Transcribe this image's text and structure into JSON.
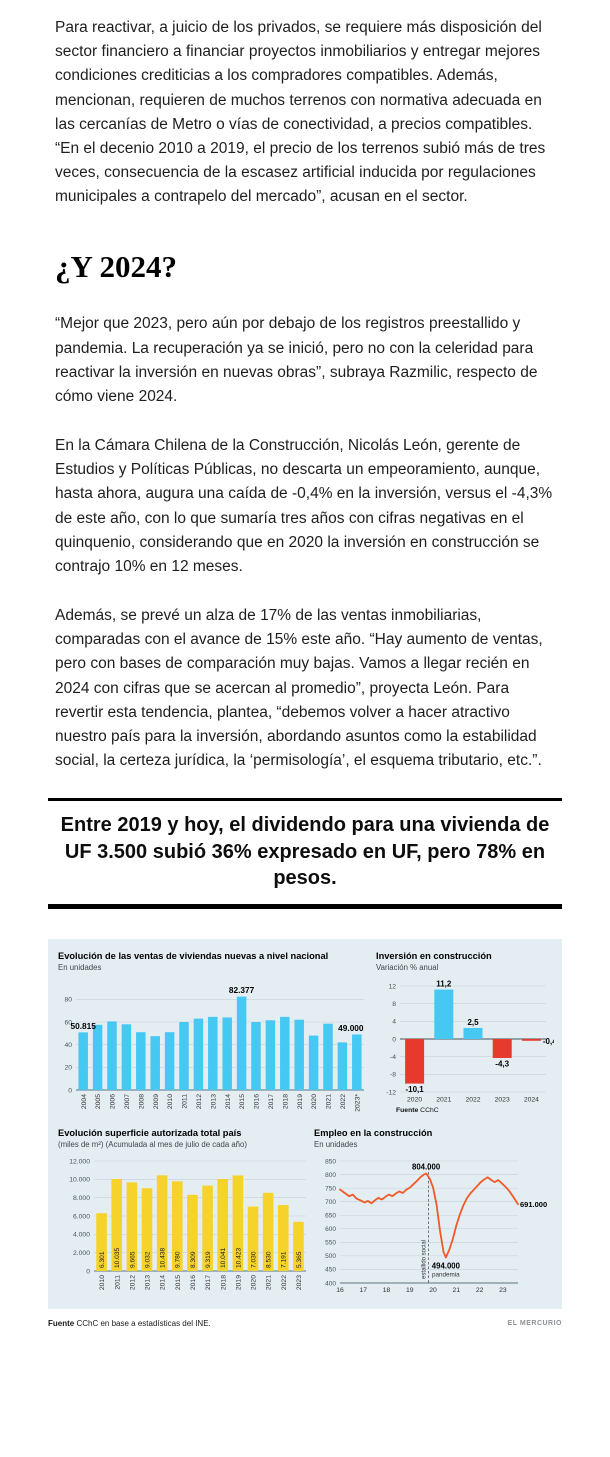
{
  "article": {
    "paragraph_1": "Para reactivar, a juicio de los privados, se requiere más disposición del sector financiero a financiar proyectos inmobiliarios y entregar mejores condiciones crediticias a los compradores compatibles. Además, mencionan, requieren de muchos terrenos con normativa adecuada en las cercanías de Metro o vías de conectividad, a precios compatibles. “En el decenio 2010 a 2019, el precio de los terrenos subió más de tres veces, consecuencia de la escasez artificial inducida por regulaciones municipales a contrapelo del mercado”, acusan en el sector.",
    "section_heading": "¿Y 2024?",
    "paragraph_2": "“Mejor que 2023, pero aún por debajo de los registros preestallido y pandemia. La recuperación ya se inició, pero no con la celeridad para reactivar la inversión en nuevas obras”, subraya Razmilic, respecto de cómo viene 2024.",
    "paragraph_3": "En la Cámara Chilena de la Construcción, Nicolás León, gerente de Estudios y Políticas Públicas, no descarta un empeoramiento, aunque, hasta ahora, augura una caída de -0,4% en la inversión, versus el -4,3% de este año, con lo que sumaría tres años con cifras negativas en el quinquenio, considerando que en 2020 la inversión en construcción se contrajo 10% en 12 meses.",
    "paragraph_4": "Además, se prevé un alza de 17% de las ventas inmobiliarias, comparadas con el avance de 15% este año. “Hay aumento de ventas, pero con bases de comparación muy bajas. Vamos a llegar recién en 2024 con cifras que se acercan al promedio”, proyecta León. Para revertir esta tendencia, plantea, “debemos volver a hacer atractivo nuestro país para la inversión, abordando asuntos como la estabilidad social, la certeza jurídica, la ‘permisología’, el esquema tributario, etc.”.",
    "pull_quote": "Entre 2019 y hoy, el dividendo para una vivienda de UF 3.500 subió 36% expresado en UF, pero 78% en pesos."
  },
  "footer": {
    "source_label": "Fuente",
    "source_text": "CChC en base a estadísticas del INE.",
    "credit": "EL MERCURIO"
  },
  "colors": {
    "accent_cyan": "#45c8f1",
    "accent_red": "#e8392d",
    "accent_yellow": "#f6d32b",
    "accent_orange": "#f1592a",
    "panel_background": "#e4edf2"
  },
  "chart_data": [
    {
      "id": "ventas-viviendas",
      "type": "bar",
      "title": "Evolución de las ventas de viviendas nuevas a nivel nacional",
      "subtitle": "En unidades",
      "unit": "miles de unidades",
      "categories": [
        "2004",
        "2005",
        "2006",
        "2007",
        "2008",
        "2009",
        "2010",
        "2011",
        "2012",
        "2013",
        "2014",
        "2015",
        "2016",
        "2017",
        "2018",
        "2019",
        "2020",
        "2021",
        "2022",
        "2023*"
      ],
      "values": [
        50.815,
        57.5,
        60.5,
        58,
        51,
        47.5,
        51,
        60,
        63,
        64.5,
        64,
        82.377,
        60,
        61.5,
        64.5,
        62,
        48,
        58.5,
        42,
        49
      ],
      "data_labels": [
        {
          "index": 0,
          "text": "50.815",
          "anchor": "middle"
        },
        {
          "index": 11,
          "text": "82.377",
          "anchor": "middle"
        },
        {
          "index": 19,
          "text": "49.000",
          "anchor": "end"
        }
      ],
      "ylim": [
        0,
        90
      ],
      "yticks": [
        0,
        20,
        40,
        60,
        80
      ],
      "bar_color": "#45c8f1"
    },
    {
      "id": "inversion-construccion",
      "type": "bar",
      "title": "Inversión en construcción",
      "subtitle": "Variación % anual",
      "categories": [
        "2020",
        "2021",
        "2022",
        "2023",
        "2024"
      ],
      "values": [
        -10.1,
        11.2,
        2.5,
        -4.3,
        -0.4
      ],
      "labels": [
        "-10,1",
        "11,2",
        "2,5",
        "-4,3",
        "-0,4"
      ],
      "label_placement": [
        "below",
        "above",
        "above",
        "below",
        "right"
      ],
      "ylim": [
        -12,
        12
      ],
      "yticks": [
        -12,
        -8,
        -4,
        0,
        4,
        8,
        12
      ],
      "positive_color": "#45c8f1",
      "negative_color": "#e8392d",
      "source_label": "Fuente",
      "source_text": "CChC"
    },
    {
      "id": "superficie-autorizada",
      "type": "bar",
      "title": "Evolución superficie autorizada total país",
      "subtitle": "(miles de m²) (Acumulada al mes de julio de cada año)",
      "categories": [
        "2010",
        "2011",
        "2012",
        "2013",
        "2014",
        "2015",
        "2016",
        "2017",
        "2018",
        "2019",
        "2020",
        "2021",
        "2022",
        "2023"
      ],
      "values": [
        6301,
        10035,
        9665,
        9032,
        10438,
        9780,
        8309,
        9319,
        10041,
        10423,
        7030,
        8530,
        7191,
        5365
      ],
      "bar_labels": [
        "6.301",
        "10.035",
        "9.665",
        "9.032",
        "10.438",
        "9.780",
        "8.309",
        "9.319",
        "10.041",
        "10.423",
        "7.030",
        "8.530",
        "7.191",
        "5.365"
      ],
      "ylim": [
        0,
        12000
      ],
      "yticks": [
        0,
        2000,
        4000,
        6000,
        8000,
        10000,
        12000
      ],
      "ytick_labels": [
        "0",
        "2.000",
        "4.000",
        "6.000",
        "8.000",
        "10.000",
        "12.000"
      ],
      "bar_color": "#f6d32b"
    },
    {
      "id": "empleo-construccion",
      "type": "line",
      "title": "Empleo en la construcción",
      "subtitle": "En unidades",
      "unit": "miles de personas",
      "x_domain": [
        16,
        23.65
      ],
      "x_ticks": [
        16,
        17,
        18,
        19,
        20,
        21,
        22,
        23
      ],
      "ylim": [
        400,
        850
      ],
      "yticks": [
        850,
        800,
        750,
        700,
        650,
        600,
        550,
        500,
        450,
        400
      ],
      "line_color": "#f1592a",
      "vline_x": 19.8,
      "vline_label": "estallido social",
      "annotations": [
        {
          "type": "peak",
          "text": "804.000",
          "x": 19.7,
          "v": 804
        },
        {
          "type": "low",
          "text": "494.000",
          "x": 20.55,
          "v": 494
        },
        {
          "type": "low-sub",
          "text": "pandemia",
          "x": 20.55,
          "v": 494
        },
        {
          "type": "end",
          "text": "691.000",
          "x": 23.65,
          "v": 691
        }
      ],
      "points": [
        [
          16,
          745
        ],
        [
          16.2,
          732
        ],
        [
          16.4,
          720
        ],
        [
          16.55,
          726
        ],
        [
          16.7,
          712
        ],
        [
          16.9,
          704
        ],
        [
          17.05,
          697
        ],
        [
          17.2,
          703
        ],
        [
          17.35,
          694
        ],
        [
          17.5,
          705
        ],
        [
          17.65,
          714
        ],
        [
          17.8,
          708
        ],
        [
          17.95,
          718
        ],
        [
          18.1,
          726
        ],
        [
          18.25,
          720
        ],
        [
          18.4,
          730
        ],
        [
          18.55,
          738
        ],
        [
          18.7,
          732
        ],
        [
          18.85,
          744
        ],
        [
          19,
          752
        ],
        [
          19.15,
          764
        ],
        [
          19.3,
          776
        ],
        [
          19.45,
          790
        ],
        [
          19.6,
          800
        ],
        [
          19.7,
          804
        ],
        [
          19.85,
          786
        ],
        [
          20,
          752
        ],
        [
          20.15,
          688
        ],
        [
          20.3,
          590
        ],
        [
          20.45,
          515
        ],
        [
          20.55,
          494
        ],
        [
          20.7,
          524
        ],
        [
          20.85,
          562
        ],
        [
          21,
          612
        ],
        [
          21.15,
          652
        ],
        [
          21.3,
          686
        ],
        [
          21.45,
          712
        ],
        [
          21.6,
          730
        ],
        [
          21.75,
          744
        ],
        [
          21.9,
          758
        ],
        [
          22.05,
          772
        ],
        [
          22.2,
          782
        ],
        [
          22.35,
          790
        ],
        [
          22.5,
          780
        ],
        [
          22.65,
          772
        ],
        [
          22.8,
          780
        ],
        [
          22.95,
          768
        ],
        [
          23.1,
          756
        ],
        [
          23.25,
          742
        ],
        [
          23.4,
          724
        ],
        [
          23.55,
          704
        ],
        [
          23.65,
          691
        ]
      ]
    }
  ]
}
